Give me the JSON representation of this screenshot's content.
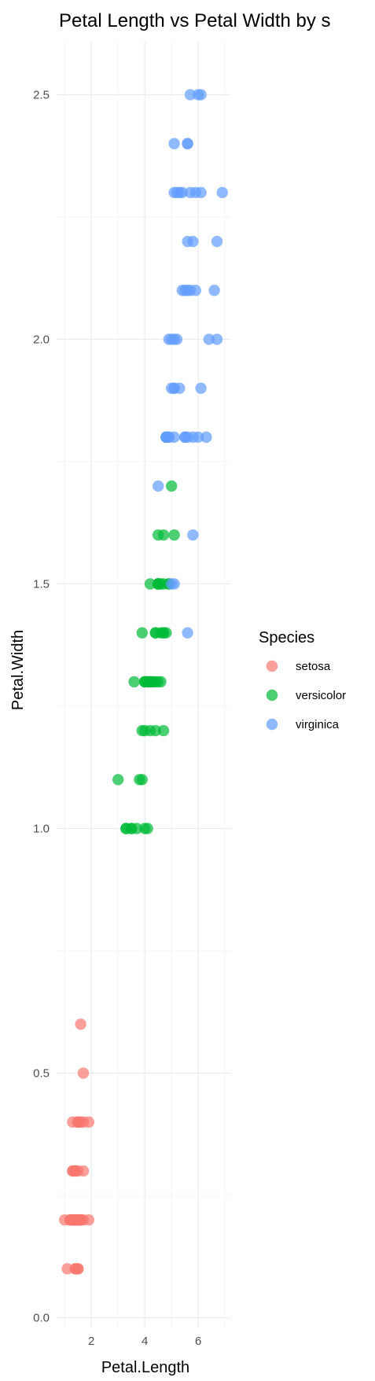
{
  "chart_data": {
    "type": "scatter",
    "title": "Petal Length vs Petal Width by s",
    "xlabel": "Petal.Length",
    "ylabel": "Petal.Width",
    "xlim": [
      0.7,
      7.2
    ],
    "ylim": [
      -0.02,
      2.61
    ],
    "x_ticks": [
      2,
      4,
      6
    ],
    "x_tick_labels": [
      "2",
      "4",
      "6"
    ],
    "y_ticks": [
      0.0,
      0.5,
      1.0,
      1.5,
      2.0,
      2.5
    ],
    "y_tick_labels": [
      "0.0",
      "0.5",
      "1.0",
      "1.5",
      "2.0",
      "2.5"
    ],
    "grid": true,
    "legend": {
      "title": "Species",
      "placement": "right"
    },
    "series": [
      {
        "name": "setosa",
        "color": "#F8766D",
        "points": [
          [
            1.4,
            0.2
          ],
          [
            1.4,
            0.2
          ],
          [
            1.3,
            0.2
          ],
          [
            1.5,
            0.2
          ],
          [
            1.4,
            0.2
          ],
          [
            1.7,
            0.4
          ],
          [
            1.4,
            0.3
          ],
          [
            1.5,
            0.2
          ],
          [
            1.4,
            0.2
          ],
          [
            1.5,
            0.1
          ],
          [
            1.5,
            0.2
          ],
          [
            1.6,
            0.2
          ],
          [
            1.4,
            0.1
          ],
          [
            1.1,
            0.1
          ],
          [
            1.2,
            0.2
          ],
          [
            1.5,
            0.4
          ],
          [
            1.3,
            0.4
          ],
          [
            1.4,
            0.3
          ],
          [
            1.7,
            0.3
          ],
          [
            1.5,
            0.3
          ],
          [
            1.7,
            0.2
          ],
          [
            1.5,
            0.4
          ],
          [
            1.0,
            0.2
          ],
          [
            1.7,
            0.5
          ],
          [
            1.9,
            0.2
          ],
          [
            1.6,
            0.2
          ],
          [
            1.6,
            0.4
          ],
          [
            1.5,
            0.2
          ],
          [
            1.4,
            0.2
          ],
          [
            1.6,
            0.2
          ],
          [
            1.6,
            0.2
          ],
          [
            1.5,
            0.4
          ],
          [
            1.5,
            0.1
          ],
          [
            1.4,
            0.2
          ],
          [
            1.5,
            0.2
          ],
          [
            1.2,
            0.2
          ],
          [
            1.3,
            0.2
          ],
          [
            1.4,
            0.1
          ],
          [
            1.3,
            0.2
          ],
          [
            1.5,
            0.2
          ],
          [
            1.3,
            0.3
          ],
          [
            1.3,
            0.3
          ],
          [
            1.3,
            0.2
          ],
          [
            1.6,
            0.6
          ],
          [
            1.9,
            0.4
          ],
          [
            1.4,
            0.3
          ],
          [
            1.6,
            0.2
          ],
          [
            1.4,
            0.2
          ],
          [
            1.5,
            0.2
          ],
          [
            1.4,
            0.2
          ]
        ]
      },
      {
        "name": "versicolor",
        "color": "#00BA38",
        "points": [
          [
            4.7,
            1.4
          ],
          [
            4.5,
            1.5
          ],
          [
            4.9,
            1.5
          ],
          [
            4.0,
            1.3
          ],
          [
            4.6,
            1.5
          ],
          [
            4.5,
            1.3
          ],
          [
            4.7,
            1.6
          ],
          [
            3.3,
            1.0
          ],
          [
            4.6,
            1.3
          ],
          [
            3.9,
            1.4
          ],
          [
            3.5,
            1.0
          ],
          [
            4.2,
            1.5
          ],
          [
            4.0,
            1.0
          ],
          [
            4.7,
            1.4
          ],
          [
            3.6,
            1.3
          ],
          [
            4.4,
            1.4
          ],
          [
            4.5,
            1.5
          ],
          [
            4.1,
            1.0
          ],
          [
            4.5,
            1.5
          ],
          [
            3.9,
            1.1
          ],
          [
            4.8,
            1.8
          ],
          [
            4.0,
            1.3
          ],
          [
            4.9,
            1.5
          ],
          [
            4.7,
            1.2
          ],
          [
            4.3,
            1.3
          ],
          [
            4.4,
            1.4
          ],
          [
            4.8,
            1.4
          ],
          [
            5.0,
            1.7
          ],
          [
            4.5,
            1.5
          ],
          [
            3.5,
            1.0
          ],
          [
            3.8,
            1.1
          ],
          [
            3.7,
            1.0
          ],
          [
            3.9,
            1.2
          ],
          [
            5.1,
            1.6
          ],
          [
            4.5,
            1.5
          ],
          [
            4.5,
            1.6
          ],
          [
            4.7,
            1.5
          ],
          [
            4.4,
            1.3
          ],
          [
            4.1,
            1.3
          ],
          [
            4.0,
            1.3
          ],
          [
            4.4,
            1.2
          ],
          [
            4.6,
            1.4
          ],
          [
            4.0,
            1.2
          ],
          [
            3.3,
            1.0
          ],
          [
            4.2,
            1.3
          ],
          [
            4.2,
            1.2
          ],
          [
            4.2,
            1.3
          ],
          [
            4.3,
            1.3
          ],
          [
            3.0,
            1.1
          ],
          [
            4.1,
            1.3
          ]
        ]
      },
      {
        "name": "virginica",
        "color": "#619CFF",
        "points": [
          [
            6.0,
            2.5
          ],
          [
            5.1,
            1.9
          ],
          [
            5.9,
            2.1
          ],
          [
            5.6,
            1.8
          ],
          [
            5.8,
            2.2
          ],
          [
            6.6,
            2.1
          ],
          [
            4.5,
            1.7
          ],
          [
            6.3,
            1.8
          ],
          [
            5.8,
            1.8
          ],
          [
            6.1,
            2.5
          ],
          [
            5.1,
            2.0
          ],
          [
            5.3,
            1.9
          ],
          [
            5.5,
            2.1
          ],
          [
            5.0,
            2.0
          ],
          [
            5.1,
            2.4
          ],
          [
            5.3,
            2.3
          ],
          [
            5.5,
            1.8
          ],
          [
            6.7,
            2.2
          ],
          [
            6.9,
            2.3
          ],
          [
            5.0,
            1.5
          ],
          [
            5.7,
            2.3
          ],
          [
            4.9,
            2.0
          ],
          [
            6.7,
            2.0
          ],
          [
            4.9,
            1.8
          ],
          [
            5.7,
            2.1
          ],
          [
            6.0,
            1.8
          ],
          [
            4.8,
            1.8
          ],
          [
            4.9,
            1.8
          ],
          [
            5.6,
            2.1
          ],
          [
            5.8,
            1.6
          ],
          [
            6.1,
            1.9
          ],
          [
            6.4,
            2.0
          ],
          [
            5.6,
            2.2
          ],
          [
            5.1,
            1.5
          ],
          [
            5.6,
            1.4
          ],
          [
            6.1,
            2.3
          ],
          [
            5.6,
            2.4
          ],
          [
            5.5,
            1.8
          ],
          [
            4.8,
            1.8
          ],
          [
            5.4,
            2.1
          ],
          [
            5.6,
            2.4
          ],
          [
            5.1,
            2.3
          ],
          [
            5.1,
            1.9
          ],
          [
            5.9,
            2.3
          ],
          [
            5.7,
            2.5
          ],
          [
            5.2,
            2.3
          ],
          [
            5.0,
            1.9
          ],
          [
            5.2,
            2.0
          ],
          [
            5.4,
            2.3
          ],
          [
            5.1,
            1.8
          ]
        ]
      }
    ]
  }
}
